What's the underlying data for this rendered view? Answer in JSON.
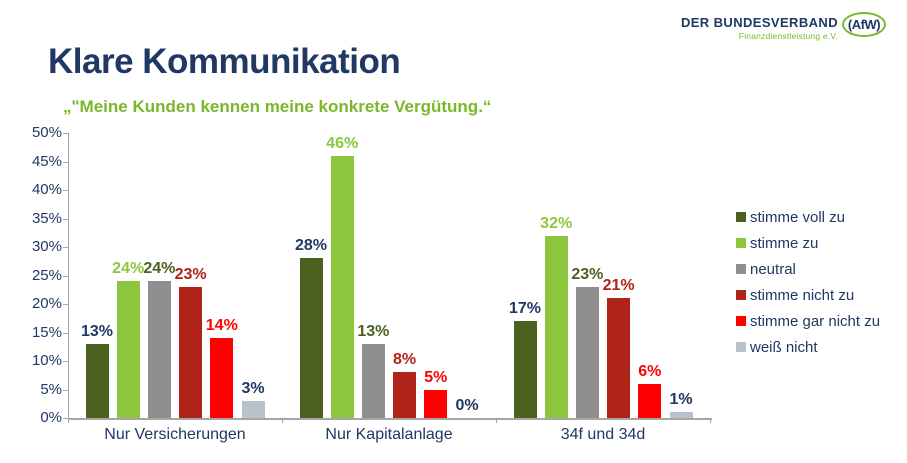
{
  "slide": {
    "title": "Klare Kommunikation",
    "subtitle": "„\"Meine Kunden kennen meine konkrete Vergütung.“"
  },
  "logo": {
    "line1": "DER BUNDESVERBAND",
    "line2": "Finanzdienstleistung e.V.",
    "badge": "(AfW)"
  },
  "colors": {
    "navy": "#1F3864",
    "subtitle_green": "#79B829",
    "axis_gray": "#A6A6A6",
    "dark_green": "#4C611F",
    "light_green": "#8CC63E",
    "gray": "#8F8F8F",
    "dark_red": "#B02318",
    "red": "#FF0000",
    "light_gray": "#B9C2CB"
  },
  "chart_data": {
    "type": "bar",
    "title": "Klare Kommunikation",
    "subtitle": "„\"Meine Kunden kennen meine konkrete Vergütung.“",
    "categories": [
      "Nur Versicherungen",
      "Nur Kapitalanlage",
      "34f und 34d"
    ],
    "series": [
      {
        "name": "stimme voll zu",
        "values": [
          13,
          28,
          17
        ],
        "color": "#4C611F",
        "label_color": "#1F3864"
      },
      {
        "name": "stimme zu",
        "values": [
          24,
          46,
          32
        ],
        "color": "#8CC63E",
        "label_color": "#8CC63E"
      },
      {
        "name": "neutral",
        "values": [
          24,
          13,
          23
        ],
        "color": "#8F8F8F",
        "label_color": "#4C611F"
      },
      {
        "name": "stimme nicht zu",
        "values": [
          23,
          8,
          21
        ],
        "color": "#B02318",
        "label_color": "#B02318"
      },
      {
        "name": "stimme gar nicht zu",
        "values": [
          14,
          5,
          6
        ],
        "color": "#FF0000",
        "label_color": "#FF0000"
      },
      {
        "name": "weiß nicht",
        "values": [
          3,
          0,
          1
        ],
        "color": "#B9C2CB",
        "label_color": "#1F3864"
      }
    ],
    "value_suffix": "%",
    "ylim": [
      0,
      50
    ],
    "ytick_step": 5,
    "yticks": [
      "0%",
      "5%",
      "10%",
      "15%",
      "20%",
      "25%",
      "30%",
      "35%",
      "40%",
      "45%",
      "50%"
    ],
    "grid": false,
    "legend_position": "right",
    "data_labels": true
  }
}
